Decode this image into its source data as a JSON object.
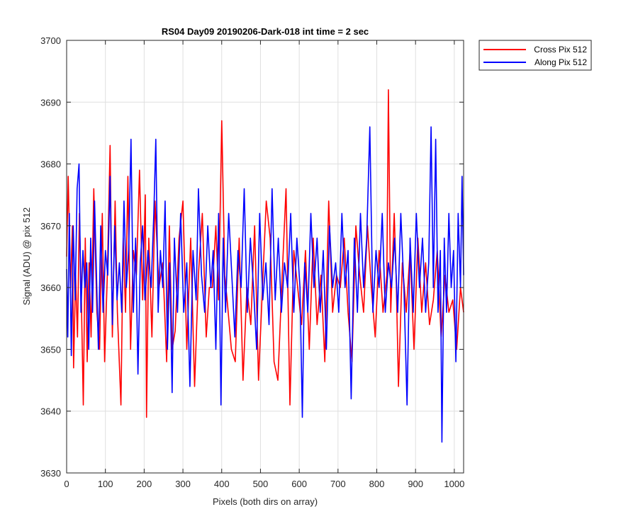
{
  "chart_data": {
    "type": "line",
    "title": "RS04 Day09 20190206-Dark-018 int time = 2 sec",
    "xlabel": "Pixels (both dirs on array)",
    "ylabel": "Signal (ADU) @ pix 512",
    "xlim": [
      0,
      1024
    ],
    "ylim": [
      3630,
      3700
    ],
    "xticks": [
      0,
      100,
      200,
      300,
      400,
      500,
      600,
      700,
      800,
      900,
      1000
    ],
    "yticks": [
      3630,
      3640,
      3650,
      3660,
      3670,
      3680,
      3690,
      3700
    ],
    "xtick_labels": [
      "0",
      "100",
      "200",
      "300",
      "400",
      "500",
      "600",
      "700",
      "800",
      "900",
      "1000"
    ],
    "ytick_labels": [
      "3630",
      "3640",
      "3650",
      "3660",
      "3670",
      "3680",
      "3690",
      "3700"
    ],
    "grid": true,
    "legend_position": "outside-top-right",
    "series": [
      {
        "name": "Cross Pix 512",
        "color": "#ff0000",
        "points": [
          [
            0,
            3665
          ],
          [
            4,
            3678
          ],
          [
            10,
            3660
          ],
          [
            15,
            3670
          ],
          [
            18,
            3647
          ],
          [
            23,
            3662
          ],
          [
            28,
            3652
          ],
          [
            33,
            3672
          ],
          [
            38,
            3658
          ],
          [
            43,
            3641
          ],
          [
            48,
            3668
          ],
          [
            53,
            3648
          ],
          [
            58,
            3664
          ],
          [
            63,
            3652
          ],
          [
            70,
            3676
          ],
          [
            78,
            3656
          ],
          [
            85,
            3650
          ],
          [
            92,
            3672
          ],
          [
            98,
            3648
          ],
          [
            105,
            3662
          ],
          [
            112,
            3683
          ],
          [
            118,
            3652
          ],
          [
            125,
            3674
          ],
          [
            131,
            3656
          ],
          [
            140,
            3641
          ],
          [
            146,
            3668
          ],
          [
            152,
            3656
          ],
          [
            158,
            3678
          ],
          [
            165,
            3650
          ],
          [
            172,
            3666
          ],
          [
            180,
            3662
          ],
          [
            188,
            3679
          ],
          [
            196,
            3658
          ],
          [
            203,
            3675
          ],
          [
            206,
            3639
          ],
          [
            212,
            3668
          ],
          [
            220,
            3652
          ],
          [
            228,
            3674
          ],
          [
            238,
            3660
          ],
          [
            248,
            3664
          ],
          [
            258,
            3648
          ],
          [
            265,
            3670
          ],
          [
            272,
            3650
          ],
          [
            280,
            3653
          ],
          [
            290,
            3668
          ],
          [
            300,
            3674
          ],
          [
            310,
            3650
          ],
          [
            320,
            3668
          ],
          [
            330,
            3644
          ],
          [
            340,
            3662
          ],
          [
            350,
            3672
          ],
          [
            360,
            3652
          ],
          [
            368,
            3660
          ],
          [
            376,
            3660
          ],
          [
            385,
            3670
          ],
          [
            392,
            3658
          ],
          [
            400,
            3687
          ],
          [
            408,
            3662
          ],
          [
            414,
            3658
          ],
          [
            425,
            3650
          ],
          [
            435,
            3648
          ],
          [
            445,
            3668
          ],
          [
            455,
            3645
          ],
          [
            465,
            3660
          ],
          [
            475,
            3654
          ],
          [
            485,
            3670
          ],
          [
            495,
            3645
          ],
          [
            505,
            3660
          ],
          [
            515,
            3674
          ],
          [
            525,
            3668
          ],
          [
            535,
            3648
          ],
          [
            545,
            3645
          ],
          [
            556,
            3662
          ],
          [
            566,
            3676
          ],
          [
            576,
            3641
          ],
          [
            586,
            3666
          ],
          [
            596,
            3660
          ],
          [
            606,
            3654
          ],
          [
            616,
            3666
          ],
          [
            626,
            3650
          ],
          [
            636,
            3668
          ],
          [
            646,
            3654
          ],
          [
            656,
            3662
          ],
          [
            666,
            3648
          ],
          [
            676,
            3674
          ],
          [
            686,
            3656
          ],
          [
            696,
            3662
          ],
          [
            706,
            3660
          ],
          [
            716,
            3668
          ],
          [
            726,
            3656
          ],
          [
            736,
            3648
          ],
          [
            746,
            3670
          ],
          [
            756,
            3662
          ],
          [
            766,
            3656
          ],
          [
            776,
            3670
          ],
          [
            786,
            3660
          ],
          [
            796,
            3652
          ],
          [
            806,
            3666
          ],
          [
            816,
            3656
          ],
          [
            826,
            3662
          ],
          [
            830,
            3692
          ],
          [
            836,
            3656
          ],
          [
            845,
            3672
          ],
          [
            850,
            3662
          ],
          [
            856,
            3644
          ],
          [
            866,
            3664
          ],
          [
            876,
            3656
          ],
          [
            886,
            3666
          ],
          [
            896,
            3650
          ],
          [
            906,
            3668
          ],
          [
            916,
            3656
          ],
          [
            926,
            3664
          ],
          [
            936,
            3654
          ],
          [
            946,
            3658
          ],
          [
            956,
            3666
          ],
          [
            966,
            3652
          ],
          [
            976,
            3662
          ],
          [
            986,
            3656
          ],
          [
            996,
            3658
          ],
          [
            1006,
            3650
          ],
          [
            1016,
            3660
          ],
          [
            1024,
            3656
          ]
        ]
      },
      {
        "name": "Along Pix 512",
        "color": "#0000ff",
        "points": [
          [
            0,
            3663
          ],
          [
            3,
            3652
          ],
          [
            7,
            3672
          ],
          [
            12,
            3649
          ],
          [
            17,
            3670
          ],
          [
            22,
            3658
          ],
          [
            27,
            3676
          ],
          [
            32,
            3680
          ],
          [
            37,
            3656
          ],
          [
            42,
            3666
          ],
          [
            47,
            3660
          ],
          [
            52,
            3664
          ],
          [
            57,
            3650
          ],
          [
            62,
            3668
          ],
          [
            67,
            3656
          ],
          [
            72,
            3674
          ],
          [
            77,
            3662
          ],
          [
            82,
            3650
          ],
          [
            88,
            3670
          ],
          [
            94,
            3656
          ],
          [
            100,
            3666
          ],
          [
            106,
            3662
          ],
          [
            112,
            3678
          ],
          [
            118,
            3654
          ],
          [
            124,
            3670
          ],
          [
            130,
            3658
          ],
          [
            136,
            3664
          ],
          [
            142,
            3656
          ],
          [
            148,
            3674
          ],
          [
            154,
            3660
          ],
          [
            160,
            3666
          ],
          [
            166,
            3684
          ],
          [
            172,
            3656
          ],
          [
            178,
            3668
          ],
          [
            184,
            3646
          ],
          [
            190,
            3664
          ],
          [
            196,
            3670
          ],
          [
            202,
            3658
          ],
          [
            210,
            3666
          ],
          [
            218,
            3660
          ],
          [
            225,
            3672
          ],
          [
            230,
            3684
          ],
          [
            236,
            3656
          ],
          [
            242,
            3666
          ],
          [
            248,
            3660
          ],
          [
            254,
            3674
          ],
          [
            260,
            3650
          ],
          [
            266,
            3664
          ],
          [
            272,
            3643
          ],
          [
            278,
            3668
          ],
          [
            286,
            3656
          ],
          [
            294,
            3672
          ],
          [
            302,
            3656
          ],
          [
            310,
            3664
          ],
          [
            318,
            3644
          ],
          [
            326,
            3666
          ],
          [
            334,
            3658
          ],
          [
            340,
            3676
          ],
          [
            348,
            3662
          ],
          [
            356,
            3656
          ],
          [
            364,
            3670
          ],
          [
            372,
            3660
          ],
          [
            378,
            3666
          ],
          [
            385,
            3650
          ],
          [
            392,
            3672
          ],
          [
            398,
            3641
          ],
          [
            404,
            3668
          ],
          [
            410,
            3656
          ],
          [
            418,
            3672
          ],
          [
            426,
            3662
          ],
          [
            434,
            3652
          ],
          [
            442,
            3666
          ],
          [
            450,
            3660
          ],
          [
            458,
            3676
          ],
          [
            466,
            3656
          ],
          [
            474,
            3668
          ],
          [
            482,
            3660
          ],
          [
            490,
            3650
          ],
          [
            498,
            3672
          ],
          [
            506,
            3658
          ],
          [
            514,
            3664
          ],
          [
            522,
            3654
          ],
          [
            530,
            3676
          ],
          [
            538,
            3658
          ],
          [
            546,
            3668
          ],
          [
            554,
            3656
          ],
          [
            562,
            3664
          ],
          [
            570,
            3660
          ],
          [
            578,
            3672
          ],
          [
            586,
            3656
          ],
          [
            594,
            3668
          ],
          [
            602,
            3660
          ],
          [
            608,
            3639
          ],
          [
            614,
            3664
          ],
          [
            622,
            3656
          ],
          [
            630,
            3672
          ],
          [
            638,
            3660
          ],
          [
            646,
            3668
          ],
          [
            654,
            3656
          ],
          [
            662,
            3666
          ],
          [
            670,
            3650
          ],
          [
            678,
            3670
          ],
          [
            686,
            3660
          ],
          [
            694,
            3664
          ],
          [
            702,
            3656
          ],
          [
            710,
            3672
          ],
          [
            718,
            3660
          ],
          [
            726,
            3666
          ],
          [
            734,
            3642
          ],
          [
            742,
            3668
          ],
          [
            750,
            3656
          ],
          [
            758,
            3672
          ],
          [
            766,
            3660
          ],
          [
            774,
            3668
          ],
          [
            782,
            3686
          ],
          [
            790,
            3656
          ],
          [
            798,
            3666
          ],
          [
            806,
            3660
          ],
          [
            814,
            3672
          ],
          [
            822,
            3656
          ],
          [
            830,
            3664
          ],
          [
            838,
            3660
          ],
          [
            846,
            3668
          ],
          [
            854,
            3656
          ],
          [
            862,
            3672
          ],
          [
            870,
            3660
          ],
          [
            878,
            3641
          ],
          [
            886,
            3668
          ],
          [
            894,
            3656
          ],
          [
            902,
            3672
          ],
          [
            910,
            3660
          ],
          [
            918,
            3668
          ],
          [
            926,
            3656
          ],
          [
            934,
            3664
          ],
          [
            940,
            3686
          ],
          [
            946,
            3660
          ],
          [
            952,
            3684
          ],
          [
            958,
            3656
          ],
          [
            964,
            3666
          ],
          [
            968,
            3635
          ],
          [
            974,
            3668
          ],
          [
            980,
            3656
          ],
          [
            986,
            3672
          ],
          [
            992,
            3660
          ],
          [
            998,
            3666
          ],
          [
            1004,
            3648
          ],
          [
            1010,
            3672
          ],
          [
            1016,
            3660
          ],
          [
            1020,
            3678
          ],
          [
            1024,
            3662
          ]
        ]
      }
    ]
  }
}
